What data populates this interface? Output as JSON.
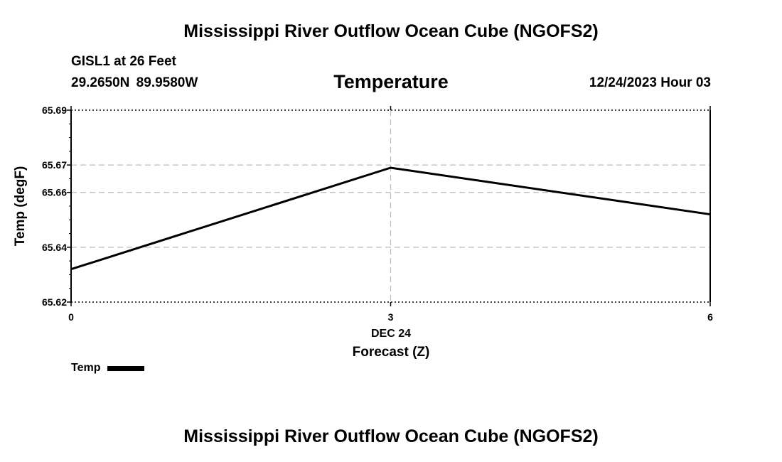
{
  "header": {
    "title": "Mississippi River Outflow Ocean Cube (NGOFS2)",
    "station": "GISL1 at 26 Feet",
    "coordinates": "29.2650N  89.9580W",
    "parameter": "Temperature",
    "datetime": "12/24/2023 Hour 03"
  },
  "footer": {
    "title": "Mississippi River Outflow Ocean Cube (NGOFS2)"
  },
  "chart_data": {
    "type": "line",
    "title": "Temperature",
    "xlabel": "Forecast (Z)",
    "ylabel": "Temp (degF)",
    "x_date_label": "DEC 24",
    "x": [
      0,
      3,
      6
    ],
    "x_ticks": [
      "0",
      "3",
      "6"
    ],
    "xlim": [
      0,
      6
    ],
    "ylim": [
      65.62,
      65.69
    ],
    "y_ticks": [
      65.62,
      65.64,
      65.66,
      65.67,
      65.69
    ],
    "y_tick_labels": [
      "65.62",
      "65.64",
      "65.66",
      "65.67",
      "65.69"
    ],
    "grid": true,
    "legend": "bottom-left",
    "series": [
      {
        "name": "Temp",
        "color": "#000000",
        "values": [
          65.632,
          65.669,
          65.652
        ]
      }
    ]
  }
}
